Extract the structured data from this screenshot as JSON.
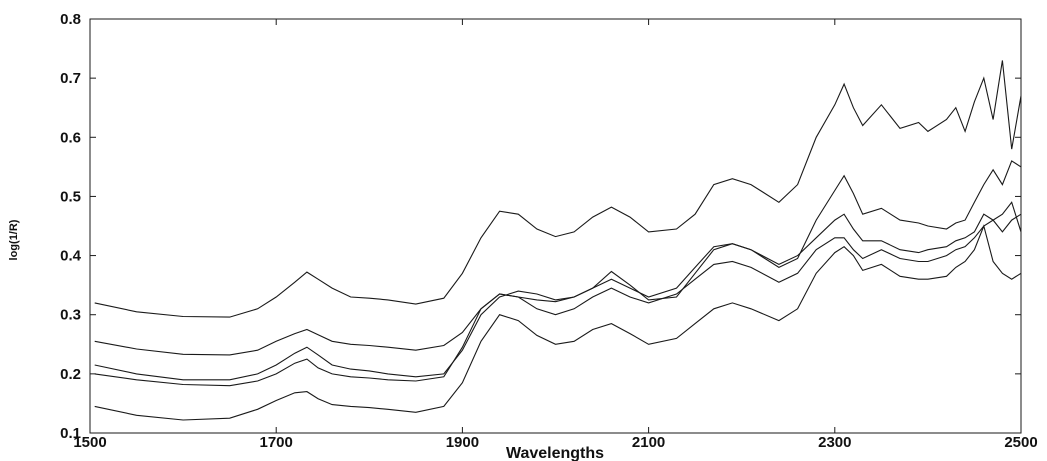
{
  "chart_data": {
    "type": "line",
    "xlabel": "Wavelengths",
    "ylabel": "log(1/R)",
    "xlim": [
      1500,
      2500
    ],
    "ylim": [
      0.1,
      0.8
    ],
    "x_ticks": [
      "1500",
      "1700",
      "1900",
      "2100",
      "2300",
      "2500"
    ],
    "y_ticks": [
      "0.1",
      "0.2",
      "0.3",
      "0.4",
      "0.5",
      "0.6",
      "0.7",
      "0.8"
    ],
    "grid": false,
    "series": [
      {
        "x": [
          1505,
          1550,
          1600,
          1650,
          1680,
          1700,
          1720,
          1733,
          1745,
          1760,
          1780,
          1800,
          1820,
          1850,
          1880,
          1900,
          1920,
          1940,
          1960,
          1980,
          2000,
          2020,
          2040,
          2060,
          2080,
          2100,
          2130,
          2150,
          2170,
          2190,
          2210,
          2240,
          2260,
          2280,
          2300,
          2310,
          2320,
          2330,
          2350,
          2370,
          2390,
          2400,
          2420,
          2430,
          2440,
          2450,
          2460,
          2470,
          2480,
          2490,
          2500
        ],
        "y": [
          0.32,
          0.305,
          0.297,
          0.296,
          0.31,
          0.33,
          0.355,
          0.372,
          0.36,
          0.345,
          0.33,
          0.328,
          0.325,
          0.318,
          0.328,
          0.37,
          0.43,
          0.475,
          0.47,
          0.445,
          0.432,
          0.44,
          0.465,
          0.482,
          0.465,
          0.44,
          0.445,
          0.47,
          0.52,
          0.53,
          0.52,
          0.49,
          0.52,
          0.6,
          0.655,
          0.69,
          0.65,
          0.62,
          0.655,
          0.615,
          0.625,
          0.61,
          0.63,
          0.65,
          0.61,
          0.66,
          0.7,
          0.63,
          0.73,
          0.58,
          0.67
        ]
      },
      {
        "x": [
          1505,
          1550,
          1600,
          1650,
          1680,
          1700,
          1720,
          1733,
          1745,
          1760,
          1780,
          1800,
          1820,
          1850,
          1880,
          1900,
          1920,
          1940,
          1960,
          1980,
          2000,
          2020,
          2040,
          2060,
          2080,
          2100,
          2130,
          2150,
          2170,
          2190,
          2210,
          2240,
          2260,
          2280,
          2300,
          2310,
          2320,
          2330,
          2350,
          2370,
          2390,
          2400,
          2420,
          2430,
          2440,
          2450,
          2460,
          2470,
          2480,
          2490,
          2500
        ],
        "y": [
          0.255,
          0.242,
          0.233,
          0.232,
          0.24,
          0.255,
          0.268,
          0.275,
          0.266,
          0.255,
          0.25,
          0.248,
          0.245,
          0.24,
          0.248,
          0.27,
          0.31,
          0.335,
          0.33,
          0.325,
          0.322,
          0.33,
          0.345,
          0.36,
          0.345,
          0.33,
          0.345,
          0.38,
          0.415,
          0.42,
          0.41,
          0.38,
          0.395,
          0.46,
          0.51,
          0.535,
          0.505,
          0.47,
          0.48,
          0.46,
          0.455,
          0.45,
          0.445,
          0.455,
          0.46,
          0.49,
          0.52,
          0.545,
          0.52,
          0.56,
          0.55
        ]
      },
      {
        "x": [
          1505,
          1550,
          1600,
          1650,
          1680,
          1700,
          1720,
          1733,
          1745,
          1760,
          1780,
          1800,
          1820,
          1850,
          1880,
          1900,
          1920,
          1940,
          1960,
          1980,
          2000,
          2020,
          2040,
          2060,
          2080,
          2100,
          2130,
          2150,
          2170,
          2190,
          2210,
          2240,
          2260,
          2280,
          2300,
          2310,
          2320,
          2330,
          2350,
          2370,
          2390,
          2400,
          2420,
          2430,
          2440,
          2450,
          2460,
          2470,
          2480,
          2490,
          2500
        ],
        "y": [
          0.215,
          0.2,
          0.19,
          0.19,
          0.2,
          0.215,
          0.235,
          0.245,
          0.232,
          0.215,
          0.208,
          0.205,
          0.2,
          0.195,
          0.2,
          0.24,
          0.3,
          0.33,
          0.34,
          0.335,
          0.325,
          0.33,
          0.345,
          0.373,
          0.35,
          0.325,
          0.33,
          0.37,
          0.41,
          0.42,
          0.41,
          0.385,
          0.4,
          0.43,
          0.46,
          0.47,
          0.445,
          0.425,
          0.425,
          0.41,
          0.405,
          0.41,
          0.415,
          0.425,
          0.43,
          0.44,
          0.47,
          0.46,
          0.44,
          0.46,
          0.47
        ]
      },
      {
        "x": [
          1505,
          1550,
          1600,
          1650,
          1680,
          1700,
          1720,
          1733,
          1745,
          1760,
          1780,
          1800,
          1820,
          1850,
          1880,
          1900,
          1920,
          1940,
          1960,
          1980,
          2000,
          2020,
          2040,
          2060,
          2080,
          2100,
          2130,
          2150,
          2170,
          2190,
          2210,
          2240,
          2260,
          2280,
          2300,
          2310,
          2320,
          2330,
          2350,
          2370,
          2390,
          2400,
          2420,
          2430,
          2440,
          2450,
          2460,
          2470,
          2480,
          2490,
          2500
        ],
        "y": [
          0.2,
          0.19,
          0.182,
          0.18,
          0.188,
          0.2,
          0.218,
          0.225,
          0.21,
          0.2,
          0.195,
          0.193,
          0.19,
          0.188,
          0.195,
          0.245,
          0.31,
          0.335,
          0.33,
          0.31,
          0.3,
          0.31,
          0.33,
          0.345,
          0.33,
          0.32,
          0.335,
          0.36,
          0.385,
          0.39,
          0.38,
          0.355,
          0.37,
          0.41,
          0.43,
          0.43,
          0.41,
          0.395,
          0.41,
          0.395,
          0.39,
          0.39,
          0.4,
          0.41,
          0.415,
          0.43,
          0.45,
          0.46,
          0.47,
          0.49,
          0.44
        ]
      },
      {
        "x": [
          1505,
          1550,
          1600,
          1650,
          1680,
          1700,
          1720,
          1733,
          1745,
          1760,
          1780,
          1800,
          1820,
          1850,
          1880,
          1900,
          1920,
          1940,
          1960,
          1980,
          2000,
          2020,
          2040,
          2060,
          2080,
          2100,
          2130,
          2150,
          2170,
          2190,
          2210,
          2240,
          2260,
          2280,
          2300,
          2310,
          2320,
          2330,
          2350,
          2370,
          2390,
          2400,
          2420,
          2430,
          2440,
          2450,
          2460,
          2470,
          2480,
          2490,
          2500
        ],
        "y": [
          0.145,
          0.13,
          0.122,
          0.125,
          0.14,
          0.155,
          0.168,
          0.17,
          0.158,
          0.148,
          0.145,
          0.143,
          0.14,
          0.135,
          0.145,
          0.185,
          0.255,
          0.3,
          0.29,
          0.265,
          0.25,
          0.255,
          0.275,
          0.285,
          0.268,
          0.25,
          0.26,
          0.285,
          0.31,
          0.32,
          0.31,
          0.29,
          0.31,
          0.37,
          0.405,
          0.415,
          0.4,
          0.375,
          0.385,
          0.365,
          0.36,
          0.36,
          0.365,
          0.38,
          0.39,
          0.41,
          0.45,
          0.39,
          0.37,
          0.36,
          0.37
        ]
      }
    ]
  }
}
